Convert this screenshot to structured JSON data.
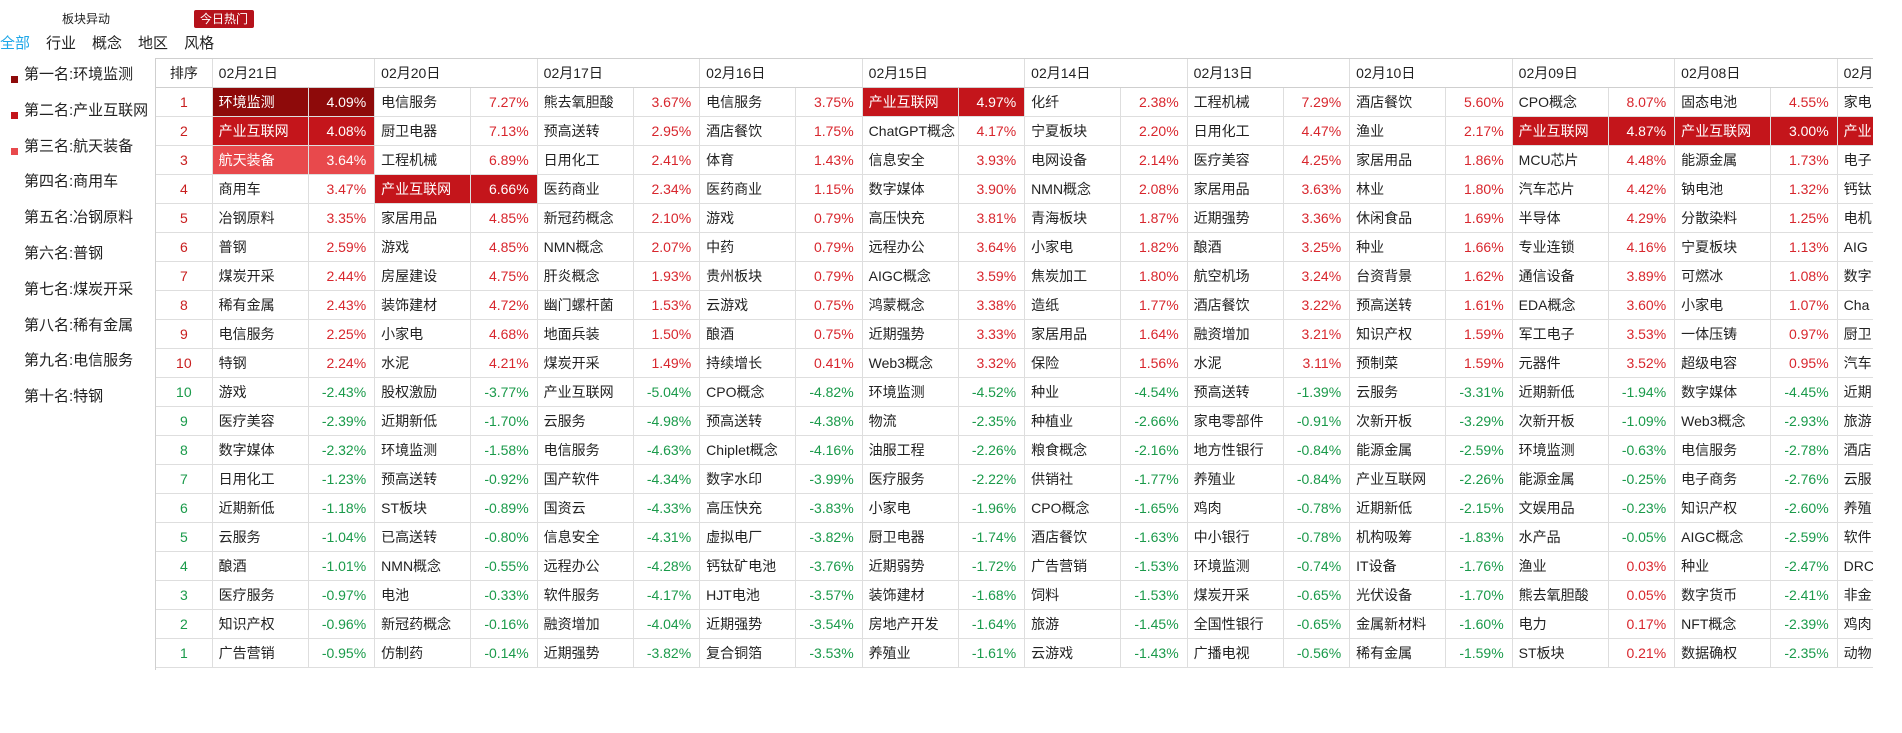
{
  "header": {
    "tabs": [
      {
        "label": "板块异动",
        "active": false
      },
      {
        "label": "今日热门",
        "active": true
      }
    ],
    "filters": [
      {
        "label": "全部",
        "active": true
      },
      {
        "label": "行业",
        "active": false
      },
      {
        "label": "概念",
        "active": false
      },
      {
        "label": "地区",
        "active": false
      },
      {
        "label": "风格",
        "active": false
      }
    ]
  },
  "sidebar": {
    "items": [
      {
        "label": "第一名:环境监测",
        "color": "#8e0a0a"
      },
      {
        "label": "第二名:产业互联网",
        "color": "#c4151b"
      },
      {
        "label": "第三名:航天装备",
        "color": "#e8494c"
      },
      {
        "label": "第四名:商用车",
        "color": ""
      },
      {
        "label": "第五名:冶钢原料",
        "color": ""
      },
      {
        "label": "第六名:普钢",
        "color": ""
      },
      {
        "label": "第七名:煤炭开采",
        "color": ""
      },
      {
        "label": "第八名:稀有金属",
        "color": ""
      },
      {
        "label": "第九名:电信服务",
        "color": ""
      },
      {
        "label": "第十名:特钢",
        "color": ""
      }
    ]
  },
  "table": {
    "rank_header": "排序",
    "colors": {
      "up": "#d8262d",
      "down": "#1a9a4a",
      "hl1": "#8e0a0a",
      "hl2": "#c4151b",
      "hl3": "#e8494c"
    },
    "dates": [
      "02月21日",
      "02月20日",
      "02月17日",
      "02月16日",
      "02月15日",
      "02月14日",
      "02月13日",
      "02月10日",
      "02月09日",
      "02月08日",
      "02月"
    ],
    "ranks": [
      "1",
      "2",
      "3",
      "4",
      "5",
      "6",
      "7",
      "8",
      "9",
      "10",
      "10",
      "9",
      "8",
      "7",
      "6",
      "5",
      "4",
      "3",
      "2",
      "1"
    ],
    "rows": [
      [
        [
          "环境监测",
          "4.09%",
          "1"
        ],
        [
          "电信服务",
          "7.27%",
          ""
        ],
        [
          "熊去氧胆酸",
          "3.67%",
          ""
        ],
        [
          "电信服务",
          "3.75%",
          ""
        ],
        [
          "产业互联网",
          "4.97%",
          "2"
        ],
        [
          "化纤",
          "2.38%",
          ""
        ],
        [
          "工程机械",
          "7.29%",
          ""
        ],
        [
          "酒店餐饮",
          "5.60%",
          ""
        ],
        [
          "CPO概念",
          "8.07%",
          ""
        ],
        [
          "固态电池",
          "4.55%",
          ""
        ],
        [
          "家电",
          "",
          ""
        ]
      ],
      [
        [
          "产业互联网",
          "4.08%",
          "2"
        ],
        [
          "厨卫电器",
          "7.13%",
          ""
        ],
        [
          "预高送转",
          "2.95%",
          ""
        ],
        [
          "酒店餐饮",
          "1.75%",
          ""
        ],
        [
          "ChatGPT概念",
          "4.17%",
          ""
        ],
        [
          "宁夏板块",
          "2.20%",
          ""
        ],
        [
          "日用化工",
          "4.47%",
          ""
        ],
        [
          "渔业",
          "2.17%",
          ""
        ],
        [
          "产业互联网",
          "4.87%",
          "2"
        ],
        [
          "产业互联网",
          "3.00%",
          "2"
        ],
        [
          "产业",
          "",
          "2"
        ]
      ],
      [
        [
          "航天装备",
          "3.64%",
          "3"
        ],
        [
          "工程机械",
          "6.89%",
          ""
        ],
        [
          "日用化工",
          "2.41%",
          ""
        ],
        [
          "体育",
          "1.43%",
          ""
        ],
        [
          "信息安全",
          "3.93%",
          ""
        ],
        [
          "电网设备",
          "2.14%",
          ""
        ],
        [
          "医疗美容",
          "4.25%",
          ""
        ],
        [
          "家居用品",
          "1.86%",
          ""
        ],
        [
          "MCU芯片",
          "4.48%",
          ""
        ],
        [
          "能源金属",
          "1.73%",
          ""
        ],
        [
          "电子",
          "",
          ""
        ]
      ],
      [
        [
          "商用车",
          "3.47%",
          ""
        ],
        [
          "产业互联网",
          "6.66%",
          "2"
        ],
        [
          "医药商业",
          "2.34%",
          ""
        ],
        [
          "医药商业",
          "1.15%",
          ""
        ],
        [
          "数字媒体",
          "3.90%",
          ""
        ],
        [
          "NMN概念",
          "2.08%",
          ""
        ],
        [
          "家居用品",
          "3.63%",
          ""
        ],
        [
          "林业",
          "1.80%",
          ""
        ],
        [
          "汽车芯片",
          "4.42%",
          ""
        ],
        [
          "钠电池",
          "1.32%",
          ""
        ],
        [
          "钙钛",
          "",
          ""
        ]
      ],
      [
        [
          "冶钢原料",
          "3.35%",
          ""
        ],
        [
          "家居用品",
          "4.85%",
          ""
        ],
        [
          "新冠药概念",
          "2.10%",
          ""
        ],
        [
          "游戏",
          "0.79%",
          ""
        ],
        [
          "高压快充",
          "3.81%",
          ""
        ],
        [
          "青海板块",
          "1.87%",
          ""
        ],
        [
          "近期强势",
          "3.36%",
          ""
        ],
        [
          "休闲食品",
          "1.69%",
          ""
        ],
        [
          "半导体",
          "4.29%",
          ""
        ],
        [
          "分散染料",
          "1.25%",
          ""
        ],
        [
          "电机",
          "",
          ""
        ]
      ],
      [
        [
          "普钢",
          "2.59%",
          ""
        ],
        [
          "游戏",
          "4.85%",
          ""
        ],
        [
          "NMN概念",
          "2.07%",
          ""
        ],
        [
          "中药",
          "0.79%",
          ""
        ],
        [
          "远程办公",
          "3.64%",
          ""
        ],
        [
          "小家电",
          "1.82%",
          ""
        ],
        [
          "酿酒",
          "3.25%",
          ""
        ],
        [
          "种业",
          "1.66%",
          ""
        ],
        [
          "专业连锁",
          "4.16%",
          ""
        ],
        [
          "宁夏板块",
          "1.13%",
          ""
        ],
        [
          "AIG",
          "",
          ""
        ]
      ],
      [
        [
          "煤炭开采",
          "2.44%",
          ""
        ],
        [
          "房屋建设",
          "4.75%",
          ""
        ],
        [
          "肝炎概念",
          "1.93%",
          ""
        ],
        [
          "贵州板块",
          "0.79%",
          ""
        ],
        [
          "AIGC概念",
          "3.59%",
          ""
        ],
        [
          "焦炭加工",
          "1.80%",
          ""
        ],
        [
          "航空机场",
          "3.24%",
          ""
        ],
        [
          "台资背景",
          "1.62%",
          ""
        ],
        [
          "通信设备",
          "3.89%",
          ""
        ],
        [
          "可燃冰",
          "1.08%",
          ""
        ],
        [
          "数字",
          "",
          ""
        ]
      ],
      [
        [
          "稀有金属",
          "2.43%",
          ""
        ],
        [
          "装饰建材",
          "4.72%",
          ""
        ],
        [
          "幽门螺杆菌",
          "1.53%",
          ""
        ],
        [
          "云游戏",
          "0.75%",
          ""
        ],
        [
          "鸿蒙概念",
          "3.38%",
          ""
        ],
        [
          "造纸",
          "1.77%",
          ""
        ],
        [
          "酒店餐饮",
          "3.22%",
          ""
        ],
        [
          "预高送转",
          "1.61%",
          ""
        ],
        [
          "EDA概念",
          "3.60%",
          ""
        ],
        [
          "小家电",
          "1.07%",
          ""
        ],
        [
          "Cha",
          "",
          ""
        ]
      ],
      [
        [
          "电信服务",
          "2.25%",
          ""
        ],
        [
          "小家电",
          "4.68%",
          ""
        ],
        [
          "地面兵装",
          "1.50%",
          ""
        ],
        [
          "酿酒",
          "0.75%",
          ""
        ],
        [
          "近期强势",
          "3.33%",
          ""
        ],
        [
          "家居用品",
          "1.64%",
          ""
        ],
        [
          "融资增加",
          "3.21%",
          ""
        ],
        [
          "知识产权",
          "1.59%",
          ""
        ],
        [
          "军工电子",
          "3.53%",
          ""
        ],
        [
          "一体压铸",
          "0.97%",
          ""
        ],
        [
          "厨卫",
          "",
          ""
        ]
      ],
      [
        [
          "特钢",
          "2.24%",
          ""
        ],
        [
          "水泥",
          "4.21%",
          ""
        ],
        [
          "煤炭开采",
          "1.49%",
          ""
        ],
        [
          "持续增长",
          "0.41%",
          ""
        ],
        [
          "Web3概念",
          "3.32%",
          ""
        ],
        [
          "保险",
          "1.56%",
          ""
        ],
        [
          "水泥",
          "3.11%",
          ""
        ],
        [
          "预制菜",
          "1.59%",
          ""
        ],
        [
          "元器件",
          "3.52%",
          ""
        ],
        [
          "超级电容",
          "0.95%",
          ""
        ],
        [
          "汽车",
          "",
          ""
        ]
      ],
      [
        [
          "游戏",
          "-2.43%",
          ""
        ],
        [
          "股权激励",
          "-3.77%",
          ""
        ],
        [
          "产业互联网",
          "-5.04%",
          ""
        ],
        [
          "CPO概念",
          "-4.82%",
          ""
        ],
        [
          "环境监测",
          "-4.52%",
          ""
        ],
        [
          "种业",
          "-4.54%",
          ""
        ],
        [
          "预高送转",
          "-1.39%",
          ""
        ],
        [
          "云服务",
          "-3.31%",
          ""
        ],
        [
          "近期新低",
          "-1.94%",
          ""
        ],
        [
          "数字媒体",
          "-4.45%",
          ""
        ],
        [
          "近期",
          "",
          ""
        ]
      ],
      [
        [
          "医疗美容",
          "-2.39%",
          ""
        ],
        [
          "近期新低",
          "-1.70%",
          ""
        ],
        [
          "云服务",
          "-4.98%",
          ""
        ],
        [
          "预高送转",
          "-4.38%",
          ""
        ],
        [
          "物流",
          "-2.35%",
          ""
        ],
        [
          "种植业",
          "-2.66%",
          ""
        ],
        [
          "家电零部件",
          "-0.91%",
          ""
        ],
        [
          "次新开板",
          "-3.29%",
          ""
        ],
        [
          "次新开板",
          "-1.09%",
          ""
        ],
        [
          "Web3概念",
          "-2.93%",
          ""
        ],
        [
          "旅游",
          "",
          ""
        ]
      ],
      [
        [
          "数字媒体",
          "-2.32%",
          ""
        ],
        [
          "环境监测",
          "-1.58%",
          ""
        ],
        [
          "电信服务",
          "-4.63%",
          ""
        ],
        [
          "Chiplet概念",
          "-4.16%",
          ""
        ],
        [
          "油服工程",
          "-2.26%",
          ""
        ],
        [
          "粮食概念",
          "-2.16%",
          ""
        ],
        [
          "地方性银行",
          "-0.84%",
          ""
        ],
        [
          "能源金属",
          "-2.59%",
          ""
        ],
        [
          "环境监测",
          "-0.63%",
          ""
        ],
        [
          "电信服务",
          "-2.78%",
          ""
        ],
        [
          "酒店",
          "",
          ""
        ]
      ],
      [
        [
          "日用化工",
          "-1.23%",
          ""
        ],
        [
          "预高送转",
          "-0.92%",
          ""
        ],
        [
          "国产软件",
          "-4.34%",
          ""
        ],
        [
          "数字水印",
          "-3.99%",
          ""
        ],
        [
          "医疗服务",
          "-2.22%",
          ""
        ],
        [
          "供销社",
          "-1.77%",
          ""
        ],
        [
          "养殖业",
          "-0.84%",
          ""
        ],
        [
          "产业互联网",
          "-2.26%",
          ""
        ],
        [
          "能源金属",
          "-0.25%",
          ""
        ],
        [
          "电子商务",
          "-2.76%",
          ""
        ],
        [
          "云服",
          "",
          ""
        ]
      ],
      [
        [
          "近期新低",
          "-1.18%",
          ""
        ],
        [
          "ST板块",
          "-0.89%",
          ""
        ],
        [
          "国资云",
          "-4.33%",
          ""
        ],
        [
          "高压快充",
          "-3.83%",
          ""
        ],
        [
          "小家电",
          "-1.96%",
          ""
        ],
        [
          "CPO概念",
          "-1.65%",
          ""
        ],
        [
          "鸡肉",
          "-0.78%",
          ""
        ],
        [
          "近期新低",
          "-2.15%",
          ""
        ],
        [
          "文娱用品",
          "-0.23%",
          ""
        ],
        [
          "知识产权",
          "-2.60%",
          ""
        ],
        [
          "养殖",
          "",
          ""
        ]
      ],
      [
        [
          "云服务",
          "-1.04%",
          ""
        ],
        [
          "已高送转",
          "-0.80%",
          ""
        ],
        [
          "信息安全",
          "-4.31%",
          ""
        ],
        [
          "虚拟电厂",
          "-3.82%",
          ""
        ],
        [
          "厨卫电器",
          "-1.74%",
          ""
        ],
        [
          "酒店餐饮",
          "-1.63%",
          ""
        ],
        [
          "中小银行",
          "-0.78%",
          ""
        ],
        [
          "机构吸筹",
          "-1.83%",
          ""
        ],
        [
          "水产品",
          "-0.05%",
          ""
        ],
        [
          "AIGC概念",
          "-2.59%",
          ""
        ],
        [
          "软件",
          "",
          ""
        ]
      ],
      [
        [
          "酿酒",
          "-1.01%",
          ""
        ],
        [
          "NMN概念",
          "-0.55%",
          ""
        ],
        [
          "远程办公",
          "-4.28%",
          ""
        ],
        [
          "钙钛矿电池",
          "-3.76%",
          ""
        ],
        [
          "近期弱势",
          "-1.72%",
          ""
        ],
        [
          "广告营销",
          "-1.53%",
          ""
        ],
        [
          "环境监测",
          "-0.74%",
          ""
        ],
        [
          "IT设备",
          "-1.76%",
          ""
        ],
        [
          "渔业",
          "0.03%",
          ""
        ],
        [
          "种业",
          "-2.47%",
          ""
        ],
        [
          "DRC",
          "",
          ""
        ]
      ],
      [
        [
          "医疗服务",
          "-0.97%",
          ""
        ],
        [
          "电池",
          "-0.33%",
          ""
        ],
        [
          "软件服务",
          "-4.17%",
          ""
        ],
        [
          "HJT电池",
          "-3.57%",
          ""
        ],
        [
          "装饰建材",
          "-1.68%",
          ""
        ],
        [
          "饲料",
          "-1.53%",
          ""
        ],
        [
          "煤炭开采",
          "-0.65%",
          ""
        ],
        [
          "光伏设备",
          "-1.70%",
          ""
        ],
        [
          "熊去氧胆酸",
          "0.05%",
          ""
        ],
        [
          "数字货币",
          "-2.41%",
          ""
        ],
        [
          "非金",
          "",
          ""
        ]
      ],
      [
        [
          "知识产权",
          "-0.96%",
          ""
        ],
        [
          "新冠药概念",
          "-0.16%",
          ""
        ],
        [
          "融资增加",
          "-4.04%",
          ""
        ],
        [
          "近期强势",
          "-3.54%",
          ""
        ],
        [
          "房地产开发",
          "-1.64%",
          ""
        ],
        [
          "旅游",
          "-1.45%",
          ""
        ],
        [
          "全国性银行",
          "-0.65%",
          ""
        ],
        [
          "金属新材料",
          "-1.60%",
          ""
        ],
        [
          "电力",
          "0.17%",
          ""
        ],
        [
          "NFT概念",
          "-2.39%",
          ""
        ],
        [
          "鸡肉",
          "",
          ""
        ]
      ],
      [
        [
          "广告营销",
          "-0.95%",
          ""
        ],
        [
          "仿制药",
          "-0.14%",
          ""
        ],
        [
          "近期强势",
          "-3.82%",
          ""
        ],
        [
          "复合铜箔",
          "-3.53%",
          ""
        ],
        [
          "养殖业",
          "-1.61%",
          ""
        ],
        [
          "云游戏",
          "-1.43%",
          ""
        ],
        [
          "广播电视",
          "-0.56%",
          ""
        ],
        [
          "稀有金属",
          "-1.59%",
          ""
        ],
        [
          "ST板块",
          "0.21%",
          ""
        ],
        [
          "数据确权",
          "-2.35%",
          ""
        ],
        [
          "动物",
          "",
          ""
        ]
      ]
    ]
  }
}
